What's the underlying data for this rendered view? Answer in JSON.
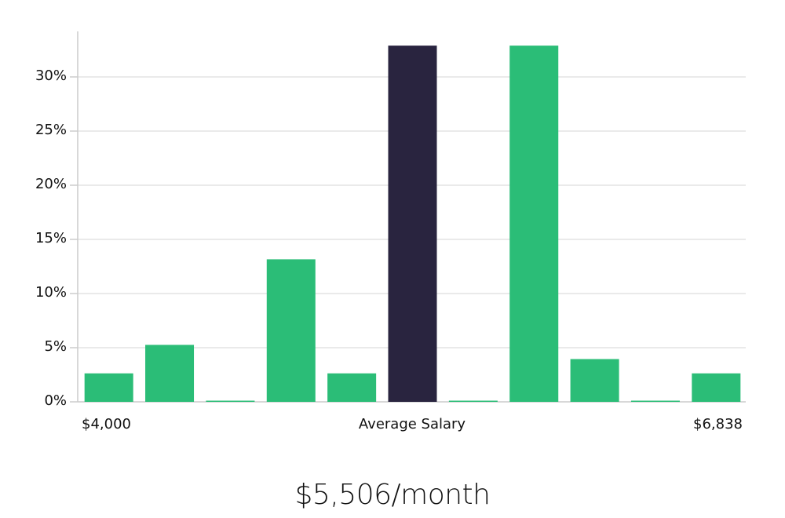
{
  "chart_data": {
    "type": "bar",
    "title": "",
    "xlabel": "Average Salary",
    "ylabel": "",
    "x_range_labels": [
      "$4,000",
      "$6,838"
    ],
    "categories": [
      "bin1",
      "bin2",
      "bin3",
      "bin4",
      "bin5",
      "bin6",
      "bin7",
      "bin8",
      "bin9",
      "bin10",
      "bin11"
    ],
    "values": [
      2.63,
      5.26,
      0,
      13.16,
      2.63,
      32.89,
      0,
      32.89,
      3.95,
      0,
      2.63
    ],
    "highlight_index": 5,
    "yticks": [
      "0%",
      "5%",
      "10%",
      "15%",
      "20%",
      "25%",
      "30%"
    ],
    "ylim": [
      0,
      34
    ],
    "grid": true,
    "colors": {
      "bar": "#2bbd77",
      "highlight": "#29243f",
      "grid": "#e3e3e3",
      "axis": "#cccccc"
    }
  },
  "labels": {
    "x_min": "$4,000",
    "x_axis_title": "Average Salary",
    "x_max": "$6,838",
    "summary": "$5,506/month"
  }
}
